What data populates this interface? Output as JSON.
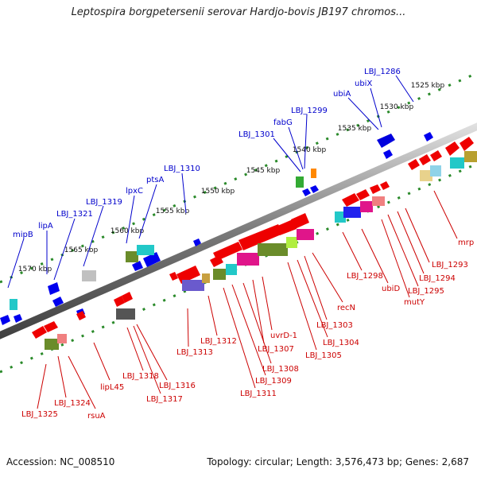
{
  "title": "Leptospira borgpetersenii serovar Hardjo-bovis JB197 chromos...",
  "footer": {
    "accession": "Accession: NC_008510",
    "topology": "Topology: circular; Length: 3,576,473 bp; Genes: 2,687"
  },
  "colors": {
    "plus_strand_label": "#0000cc",
    "minus_strand_label": "#cc0000",
    "plus_gene": "#0000ee",
    "minus_gene": "#ee0000",
    "backbone": "#808080",
    "tick_dots": "#2a8a2a"
  },
  "kbp_labels": [
    {
      "label": "1525 kbp",
      "pos": 1525
    },
    {
      "label": "1530 kbp",
      "pos": 1530
    },
    {
      "label": "1535 kbp",
      "pos": 1535
    },
    {
      "label": "1540 kbp",
      "pos": 1540
    },
    {
      "label": "1545 kbp",
      "pos": 1545
    },
    {
      "label": "1550 kbp",
      "pos": 1550
    },
    {
      "label": "1555 kbp",
      "pos": 1555
    },
    {
      "label": "1560 kbp",
      "pos": 1560
    },
    {
      "label": "1565 kbp",
      "pos": 1565
    },
    {
      "label": "1570 kbp",
      "pos": 1570
    }
  ],
  "plus_strand_labels": [
    "LBJ_1286",
    "ubiX",
    "ubiA",
    "LBJ_1299",
    "fabG",
    "LBJ_1301",
    "LBJ_1310",
    "ptsA",
    "lpxC",
    "LBJ_1319",
    "LBJ_1321",
    "lipA",
    "mipB"
  ],
  "minus_strand_labels": [
    "mrp",
    "LBJ_1293",
    "LBJ_1294",
    "LBJ_1295",
    "mutY",
    "ubiD",
    "LBJ_1298",
    "recN",
    "LBJ_1303",
    "LBJ_1304",
    "LBJ_1305",
    "uvrD-1",
    "LBJ_1307",
    "LBJ_1308",
    "LBJ_1309",
    "LBJ_1311",
    "LBJ_1312",
    "LBJ_1313",
    "LBJ_1316",
    "LBJ_1317",
    "LBJ_1318",
    "lipL45",
    "rsuA",
    "LBJ_1324",
    "LBJ_1325"
  ]
}
